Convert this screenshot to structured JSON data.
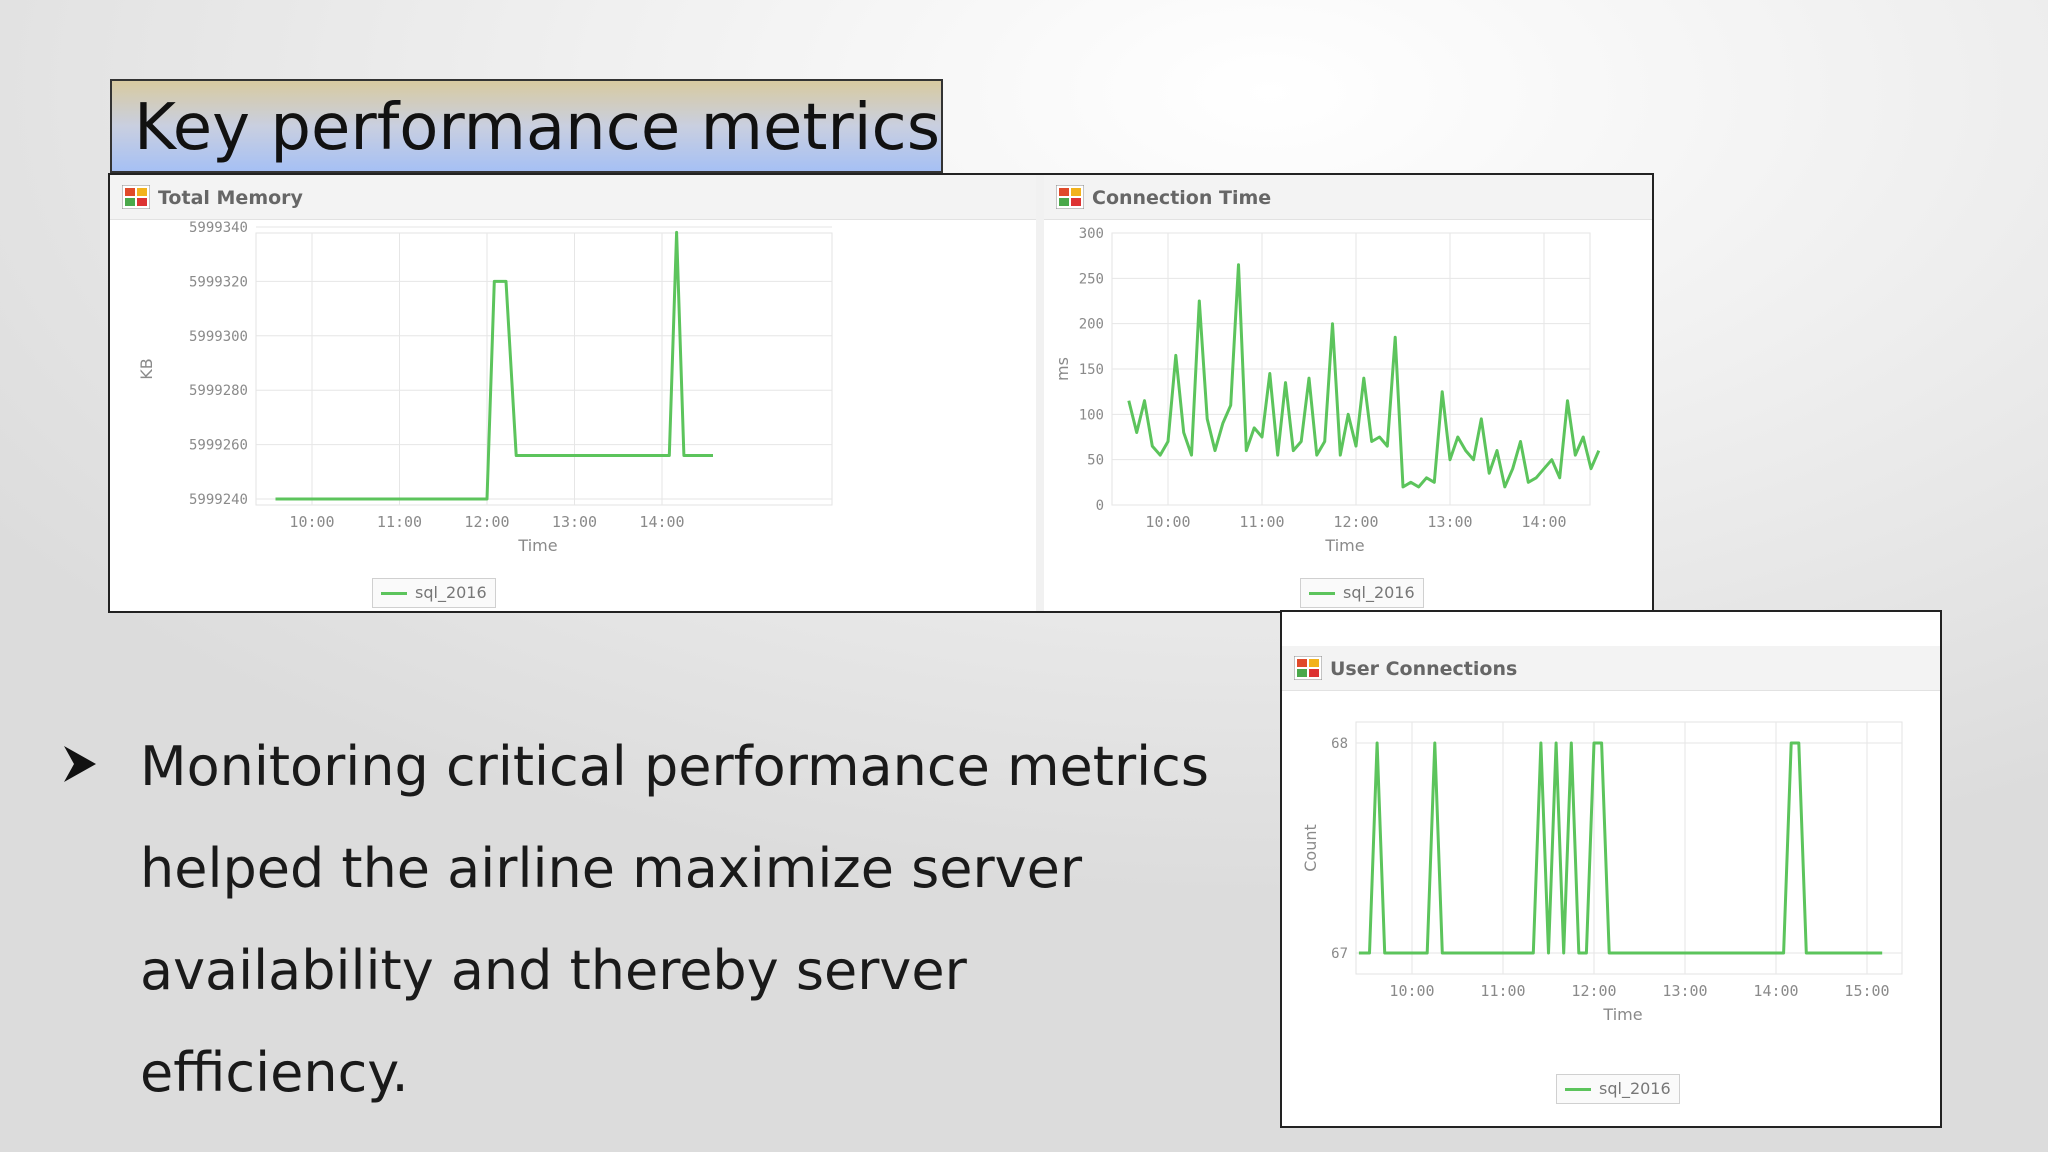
{
  "slide": {
    "title": "Key performance metrics",
    "bullet": "Monitoring critical performance metrics helped the airline maximize server availability and thereby server efficiency."
  },
  "colors": {
    "series": "#5cc45c",
    "grid": "#e6e6e6",
    "axis_text": "#8a8a8a",
    "title_box": "#a6c0f4"
  },
  "icons": {
    "chart_header": "chart-icon",
    "bullet": "arrow-bullet-icon"
  },
  "chart_data": [
    {
      "id": "total-memory",
      "type": "line",
      "title": "Total Memory",
      "xlabel": "Time",
      "ylabel": "KB",
      "xticks": [
        "10:00",
        "11:00",
        "12:00",
        "13:00",
        "14:00"
      ],
      "yticks": [
        "5999240",
        "5999260",
        "5999280",
        "5999300",
        "5999320",
        "5999340"
      ],
      "ylim": [
        5999240,
        5999340
      ],
      "grid": true,
      "legend": "bottom-center",
      "series": [
        {
          "name": "sql_2016",
          "x": [
            "09:35",
            "12:00",
            "12:05",
            "12:13",
            "12:20",
            "14:05",
            "14:10",
            "14:15",
            "14:35"
          ],
          "y": [
            5999240,
            5999240,
            5999320,
            5999320,
            5999256,
            5999256,
            5999338,
            5999256,
            5999256
          ]
        }
      ]
    },
    {
      "id": "connection-time",
      "type": "line",
      "title": "Connection Time",
      "xlabel": "Time",
      "ylabel": "ms",
      "xticks": [
        "10:00",
        "11:00",
        "12:00",
        "13:00",
        "14:00"
      ],
      "yticks": [
        "0",
        "50",
        "100",
        "150",
        "200",
        "250",
        "300"
      ],
      "ylim": [
        0,
        300
      ],
      "grid": true,
      "legend": "bottom-center",
      "series": [
        {
          "name": "sql_2016",
          "x": [
            "09:35",
            "09:40",
            "09:45",
            "09:50",
            "09:55",
            "10:00",
            "10:05",
            "10:10",
            "10:15",
            "10:20",
            "10:25",
            "10:30",
            "10:35",
            "10:40",
            "10:45",
            "10:50",
            "10:55",
            "11:00",
            "11:05",
            "11:10",
            "11:15",
            "11:20",
            "11:25",
            "11:30",
            "11:35",
            "11:40",
            "11:45",
            "11:50",
            "11:55",
            "12:00",
            "12:05",
            "12:10",
            "12:15",
            "12:20",
            "12:25",
            "12:30",
            "12:35",
            "12:40",
            "12:45",
            "12:50",
            "12:55",
            "13:00",
            "13:05",
            "13:10",
            "13:15",
            "13:20",
            "13:25",
            "13:30",
            "13:35",
            "13:40",
            "13:45",
            "13:50",
            "13:55",
            "14:00",
            "14:05",
            "14:10",
            "14:15",
            "14:20",
            "14:25",
            "14:30",
            "14:35"
          ],
          "y": [
            115,
            80,
            115,
            65,
            55,
            70,
            165,
            80,
            55,
            225,
            95,
            60,
            90,
            110,
            265,
            60,
            85,
            75,
            145,
            55,
            135,
            60,
            70,
            140,
            55,
            70,
            200,
            55,
            100,
            65,
            140,
            70,
            75,
            65,
            185,
            20,
            25,
            20,
            30,
            25,
            125,
            50,
            75,
            60,
            50,
            95,
            35,
            60,
            20,
            40,
            70,
            25,
            30,
            40,
            50,
            30,
            115,
            55,
            75,
            40,
            60
          ]
        }
      ]
    },
    {
      "id": "user-connections",
      "type": "line",
      "title": "User Connections",
      "xlabel": "Time",
      "ylabel": "Count",
      "xticks": [
        "10:00",
        "11:00",
        "12:00",
        "13:00",
        "14:00",
        "15:00"
      ],
      "yticks": [
        "67",
        "68"
      ],
      "ylim": [
        66.9,
        68.1
      ],
      "grid": true,
      "legend": "bottom-center",
      "series": [
        {
          "name": "sql_2016",
          "x": [
            "09:25",
            "09:32",
            "09:37",
            "09:42",
            "10:10",
            "10:15",
            "10:20",
            "11:20",
            "11:25",
            "11:30",
            "11:35",
            "11:40",
            "11:45",
            "11:50",
            "11:55",
            "12:00",
            "12:05",
            "12:10",
            "12:20",
            "14:05",
            "14:10",
            "14:15",
            "14:20",
            "15:10"
          ],
          "y": [
            67,
            67,
            68,
            67,
            67,
            68,
            67,
            67,
            68,
            67,
            68,
            67,
            68,
            67,
            67,
            68,
            68,
            67,
            67,
            67,
            68,
            68,
            67,
            67
          ]
        }
      ]
    }
  ]
}
